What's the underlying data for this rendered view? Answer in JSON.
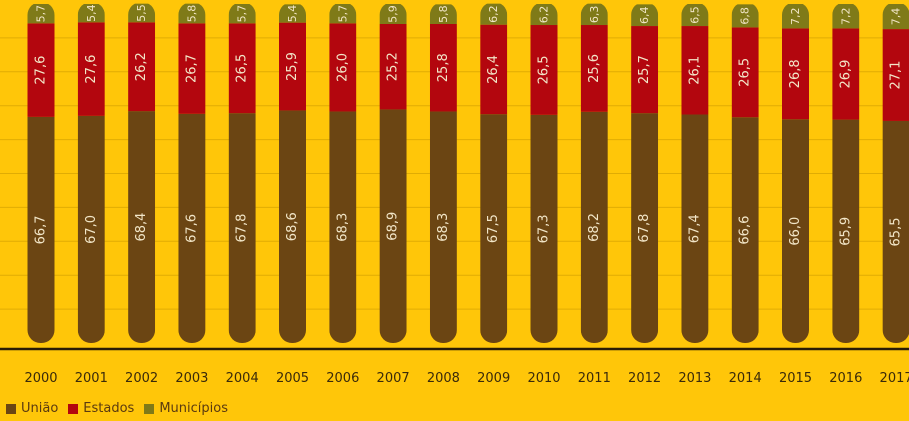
{
  "chart_data": {
    "type": "bar",
    "stacked": true,
    "orientation": "vertical",
    "categories": [
      "2000",
      "2001",
      "2002",
      "2003",
      "2004",
      "2005",
      "2006",
      "2007",
      "2008",
      "2009",
      "2010",
      "2011",
      "2012",
      "2013",
      "2014",
      "2015",
      "2016",
      "2017"
    ],
    "series": [
      {
        "name": "União",
        "color": "#6B4513",
        "values": [
          66.7,
          67.0,
          68.4,
          67.6,
          67.8,
          68.6,
          68.3,
          68.9,
          68.3,
          67.5,
          67.3,
          68.2,
          67.8,
          67.4,
          66.6,
          66.0,
          65.9,
          65.5
        ],
        "labels": [
          "66,7",
          "67,0",
          "68,4",
          "67,6",
          "67,8",
          "68,6",
          "68,3",
          "68,9",
          "68,3",
          "67,5",
          "67,3",
          "68,2",
          "67,8",
          "67,4",
          "66,6",
          "66,0",
          "65,9",
          "65,5"
        ]
      },
      {
        "name": "Estados",
        "color": "#B3060E",
        "values": [
          27.6,
          27.6,
          26.2,
          26.7,
          26.5,
          25.9,
          26.0,
          25.2,
          25.8,
          26.4,
          26.5,
          25.6,
          25.7,
          26.1,
          26.5,
          26.8,
          26.9,
          27.1
        ],
        "labels": [
          "27,6",
          "27,6",
          "26,2",
          "26,7",
          "26,5",
          "25,9",
          "26,0",
          "25,2",
          "25,8",
          "26,4",
          "26,5",
          "25,6",
          "25,7",
          "26,1",
          "26,5",
          "26,8",
          "26,9",
          "27,1"
        ]
      },
      {
        "name": "Municípios",
        "color": "#7F7A18",
        "values": [
          5.7,
          5.4,
          5.5,
          5.8,
          5.7,
          5.4,
          5.7,
          5.9,
          5.8,
          6.2,
          6.2,
          6.3,
          6.4,
          6.5,
          6.8,
          7.2,
          7.2,
          7.4
        ],
        "labels": [
          "5,7",
          "5,4",
          "5,5",
          "5,8",
          "5,7",
          "5,4",
          "5,7",
          "5,9",
          "5,8",
          "6,2",
          "6,2",
          "6,3",
          "6,4",
          "6,5",
          "6,8",
          "7,2",
          "7,2",
          "7,4"
        ]
      }
    ],
    "ylim": [
      0,
      100
    ],
    "grid": true,
    "legend_position": "bottom-left"
  }
}
